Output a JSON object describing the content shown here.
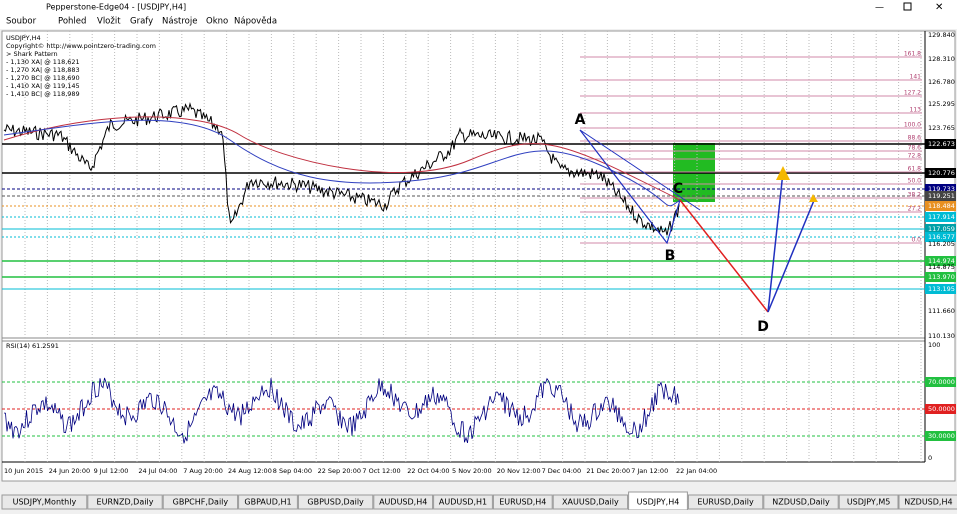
{
  "window": {
    "title": "Pepperstone-Edge04 - [USDJPY,H4]",
    "menu": [
      "Soubor",
      "Pohled",
      "Vložit",
      "Grafy",
      "Nástroje",
      "Okno",
      "Nápověda"
    ]
  },
  "chart": {
    "info": [
      "USDJPY,H4",
      "Copyright© http://www.pointzero-trading.com",
      "> Shark Pattern",
      "- 1,130 XA| @ 118,621",
      "- 1,270 XA| @ 118,883",
      "- 1,270 BC| @ 118,690",
      "- 1,410 XA| @ 119,145",
      "- 1,410 BC| @ 118,989"
    ],
    "price_labels": [
      "129.840",
      "128.310",
      "126.780",
      "125.295",
      "123.765",
      "122.673",
      "120.776",
      "119.733",
      "119.251",
      "118.484",
      "117.914",
      "117.059",
      "116.577",
      "116.205",
      "114.974",
      "114.875",
      "113.970",
      "113.195",
      "111.660",
      "110.130"
    ],
    "fib_labels": [
      "161.8",
      "141",
      "127.2",
      "113",
      "100.0",
      "88.6",
      "78.6",
      "72.8",
      "61.8",
      "50.0",
      "38.2",
      "27.2",
      "0.0"
    ],
    "pattern_points": [
      "A",
      "B",
      "C",
      "D"
    ],
    "rsi": {
      "label": "RSI(14) 61.2591",
      "scale": [
        "100",
        "70.0000",
        "50.0000",
        "30.0000",
        "0"
      ]
    },
    "time_labels": [
      "10 Jun 2015",
      "24 Jun 20:00",
      "9 Jul 12:00",
      "24 Jul 04:00",
      "7 Aug 20:00",
      "24 Aug 12:00",
      "8 Sep 04:00",
      "22 Sep 20:00",
      "7 Oct 12:00",
      "22 Oct 04:00",
      "5 Nov 20:00",
      "20 Nov 12:00",
      "7 Dec 04:00",
      "21 Dec 20:00",
      "7 Jan 12:00",
      "22 Jan 04:00"
    ]
  },
  "tabs": [
    "USDJPY,Monthly",
    "EURNZD,Daily",
    "GBPCHF,Daily",
    "GBPAUD,H1",
    "GBPUSD,Daily",
    "AUDUSD,H4",
    "AUDUSD,H1",
    "EURUSD,H4",
    "XAUUSD,Daily",
    "USDJPY,H4",
    "EURUSD,Daily",
    "NZDUSD,Daily",
    "USDJPY,M5",
    "NZDUSD,H4"
  ]
}
